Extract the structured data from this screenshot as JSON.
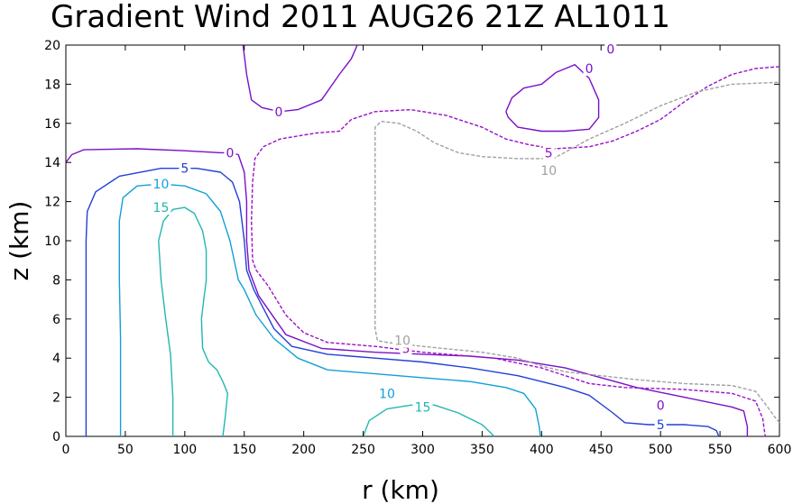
{
  "chart_data": {
    "type": "contour",
    "title": "Gradient Wind 2011 AUG26 21Z  AL1011",
    "xlabel": "r (km)",
    "ylabel": "z (km)",
    "xlim": [
      0,
      600
    ],
    "ylim": [
      0,
      20
    ],
    "x_ticks": [
      "0",
      "50",
      "100",
      "150",
      "200",
      "250",
      "300",
      "350",
      "400",
      "450",
      "500",
      "550",
      "600"
    ],
    "y_ticks": [
      "0",
      "2",
      "4",
      "6",
      "8",
      "10",
      "12",
      "14",
      "16",
      "18",
      "20"
    ],
    "grid": false,
    "colors": {
      "-10": "#a0a0a0",
      "-5": "#9a10c8",
      "0": "#7a10c8",
      "5": "#2040d8",
      "10": "#10a0d8",
      "15": "#20b8b0"
    },
    "contours": [
      {
        "level": 0,
        "dashed": false,
        "segments": [
          [
            [
              0,
              14
            ],
            [
              5,
              14.4
            ],
            [
              15,
              14.65
            ],
            [
              60,
              14.7
            ],
            [
              100,
              14.6
            ],
            [
              130,
              14.5
            ],
            [
              138,
              14.5
            ],
            [
              145,
              14.4
            ],
            [
              150,
              13.5
            ],
            [
              152,
              12
            ],
            [
              152,
              10
            ],
            [
              154,
              8.5
            ],
            [
              162,
              7.2
            ],
            [
              185,
              5.2
            ],
            [
              215,
              4.5
            ],
            [
              260,
              4.3
            ],
            [
              300,
              4.2
            ],
            [
              340,
              4.1
            ],
            [
              380,
              3.9
            ],
            [
              420,
              3.5
            ],
            [
              450,
              3
            ],
            [
              480,
              2.5
            ],
            [
              520,
              2
            ],
            [
              560,
              1.5
            ],
            [
              570,
              1.3
            ],
            [
              573,
              0.5
            ],
            [
              573,
              0
            ]
          ],
          [
            [
              149,
              20
            ],
            [
              152,
              18.5
            ],
            [
              156,
              17.2
            ],
            [
              165,
              16.8
            ],
            [
              180,
              16.6
            ],
            [
              195,
              16.7
            ],
            [
              215,
              17.2
            ],
            [
              230,
              18.5
            ],
            [
              240,
              19.3
            ],
            [
              245,
              20
            ]
          ],
          [
            [
              370,
              16.6
            ],
            [
              375,
              17.3
            ],
            [
              385,
              17.8
            ],
            [
              400,
              18
            ],
            [
              412,
              18.6
            ],
            [
              428,
              19
            ],
            [
              440,
              18.3
            ],
            [
              448,
              17.2
            ],
            [
              448,
              16.3
            ],
            [
              440,
              15.7
            ],
            [
              420,
              15.6
            ],
            [
              400,
              15.6
            ],
            [
              380,
              15.8
            ],
            [
              372,
              16.3
            ],
            [
              370,
              16.6
            ]
          ],
          [
            [
              457,
              20
            ],
            [
              458,
              19.6
            ]
          ]
        ],
        "labels": [
          [
            138,
            14.5
          ],
          [
            179,
            16.6
          ],
          [
            440,
            18.8
          ],
          [
            458,
            19.8
          ],
          [
            500,
            1.6
          ]
        ]
      },
      {
        "level": -5,
        "dashed": true,
        "segments": [
          [
            [
              600,
              18.9
            ],
            [
              580,
              18.8
            ],
            [
              560,
              18.5
            ],
            [
              540,
              17.9
            ],
            [
              520,
              17.1
            ],
            [
              500,
              16.2
            ],
            [
              480,
              15.6
            ],
            [
              460,
              15.1
            ],
            [
              440,
              14.8
            ],
            [
              410,
              14.7
            ],
            [
              390,
              14.9
            ],
            [
              370,
              15.2
            ],
            [
              350,
              15.8
            ],
            [
              320,
              16.4
            ],
            [
              290,
              16.7
            ],
            [
              260,
              16.6
            ],
            [
              240,
              16.2
            ],
            [
              230,
              15.6
            ],
            [
              210,
              15.5
            ],
            [
              180,
              15.2
            ],
            [
              166,
              14.8
            ],
            [
              159,
              14.2
            ],
            [
              157,
              13
            ],
            [
              156,
              11
            ],
            [
              157,
              9
            ],
            [
              160,
              8.5
            ],
            [
              170,
              7.7
            ],
            [
              185,
              6.2
            ],
            [
              200,
              5.3
            ],
            [
              220,
              4.8
            ],
            [
              260,
              4.6
            ],
            [
              300,
              4.3
            ],
            [
              360,
              4
            ],
            [
              400,
              3.5
            ],
            [
              440,
              2.7
            ],
            [
              470,
              2.5
            ],
            [
              520,
              2.4
            ],
            [
              560,
              2.2
            ],
            [
              580,
              1.8
            ],
            [
              586,
              0.9
            ],
            [
              588,
              0
            ]
          ]
        ],
        "labels": [
          [
            406,
            14.5
          ],
          [
            286,
            4.5
          ]
        ]
      },
      {
        "level": -10,
        "dashed": true,
        "segments": [
          [
            [
              600,
              0.7
            ],
            [
              596,
              1
            ],
            [
              590,
              1.5
            ],
            [
              580,
              2.3
            ],
            [
              560,
              2.6
            ],
            [
              520,
              2.7
            ],
            [
              480,
              2.9
            ],
            [
              450,
              3.1
            ],
            [
              420,
              3.3
            ],
            [
              400,
              3.6
            ],
            [
              380,
              4
            ],
            [
              350,
              4.3
            ],
            [
              300,
              4.6
            ],
            [
              270,
              4.8
            ],
            [
              262,
              4.9
            ],
            [
              260,
              5.5
            ],
            [
              260,
              12
            ],
            [
              260,
              15.8
            ],
            [
              265,
              16.1
            ],
            [
              280,
              16
            ],
            [
              295,
              15.6
            ],
            [
              310,
              15
            ],
            [
              330,
              14.5
            ],
            [
              350,
              14.3
            ],
            [
              380,
              14.2
            ],
            [
              410,
              14.2
            ],
            [
              440,
              15.2
            ],
            [
              470,
              16
            ],
            [
              500,
              16.9
            ],
            [
              530,
              17.6
            ],
            [
              560,
              18
            ],
            [
              600,
              18.1
            ]
          ]
        ],
        "labels": [
          [
            406,
            13.6
          ],
          [
            283,
            4.9
          ]
        ]
      },
      {
        "level": 5,
        "dashed": false,
        "segments": [
          [
            [
              17,
              0
            ],
            [
              17,
              6
            ],
            [
              17,
              10
            ],
            [
              18,
              11.5
            ],
            [
              25,
              12.5
            ],
            [
              45,
              13.3
            ],
            [
              80,
              13.7
            ],
            [
              110,
              13.7
            ],
            [
              130,
              13.5
            ],
            [
              140,
              13
            ],
            [
              146,
              12
            ],
            [
              150,
              10
            ],
            [
              152,
              8.5
            ],
            [
              158,
              7.5
            ],
            [
              175,
              5.5
            ],
            [
              190,
              4.6
            ],
            [
              220,
              4.2
            ],
            [
              260,
              4
            ],
            [
              300,
              3.8
            ],
            [
              340,
              3.5
            ],
            [
              380,
              3.1
            ],
            [
              400,
              2.8
            ],
            [
              420,
              2.5
            ],
            [
              440,
              2.1
            ],
            [
              460,
              1.2
            ],
            [
              470,
              0.7
            ],
            [
              490,
              0.6
            ],
            [
              520,
              0.6
            ],
            [
              540,
              0.5
            ],
            [
              547,
              0.3
            ],
            [
              549,
              0
            ]
          ]
        ],
        "labels": [
          [
            100,
            13.7
          ],
          [
            500,
            0.6
          ]
        ]
      },
      {
        "level": 10,
        "dashed": false,
        "segments": [
          [
            [
              46,
              0
            ],
            [
              46,
              5
            ],
            [
              45,
              8
            ],
            [
              45,
              11
            ],
            [
              48,
              12.2
            ],
            [
              60,
              12.8
            ],
            [
              80,
              12.9
            ],
            [
              100,
              12.8
            ],
            [
              118,
              12.4
            ],
            [
              130,
              11.5
            ],
            [
              138,
              10
            ],
            [
              145,
              8
            ],
            [
              150,
              7.5
            ],
            [
              160,
              6.2
            ],
            [
              175,
              5
            ],
            [
              195,
              4
            ],
            [
              220,
              3.4
            ],
            [
              260,
              3.2
            ],
            [
              300,
              3
            ],
            [
              340,
              2.8
            ],
            [
              370,
              2.5
            ],
            [
              385,
              2.2
            ],
            [
              395,
              1.4
            ],
            [
              398,
              0.5
            ],
            [
              399,
              0
            ]
          ],
          [
            [
              150,
              0
            ],
            [
              150,
              0
            ]
          ]
        ],
        "labels": [
          [
            80,
            12.9
          ],
          [
            270,
            2.2
          ]
        ]
      },
      {
        "level": 15,
        "dashed": false,
        "segments": [
          [
            [
              90,
              0
            ],
            [
              90,
              2
            ],
            [
              88,
              4.2
            ],
            [
              84,
              6
            ],
            [
              80,
              8
            ],
            [
              78,
              10
            ],
            [
              82,
              11
            ],
            [
              90,
              11.6
            ],
            [
              100,
              11.7
            ],
            [
              108,
              11.4
            ],
            [
              115,
              10.5
            ],
            [
              118,
              9.5
            ],
            [
              118,
              8
            ],
            [
              116,
              7
            ],
            [
              114,
              6
            ],
            [
              115,
              4.5
            ],
            [
              120,
              3.8
            ],
            [
              127,
              3.4
            ],
            [
              132,
              2.8
            ],
            [
              136,
              2.2
            ],
            [
              134,
              1
            ],
            [
              132,
              0
            ]
          ],
          [
            [
              250,
              0
            ],
            [
              255,
              0.8
            ],
            [
              270,
              1.4
            ],
            [
              290,
              1.6
            ],
            [
              310,
              1.6
            ],
            [
              330,
              1.2
            ],
            [
              350,
              0.6
            ],
            [
              357,
              0.2
            ],
            [
              360,
              0
            ]
          ]
        ],
        "labels": [
          [
            80,
            11.7
          ],
          [
            300,
            1.5
          ]
        ]
      }
    ]
  }
}
